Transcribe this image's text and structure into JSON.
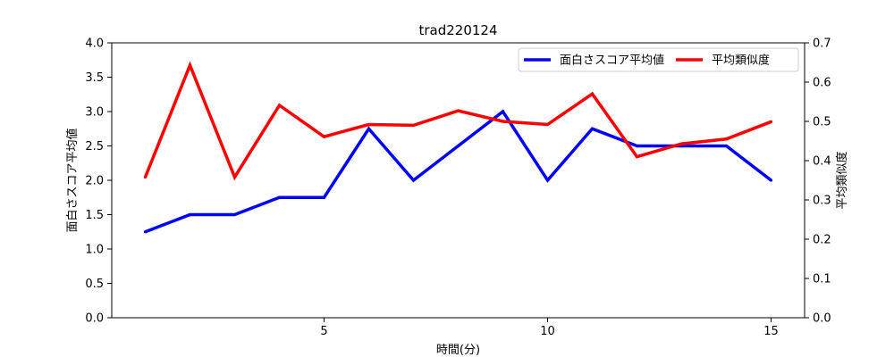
{
  "chart_data": {
    "type": "line",
    "title": "trad220124",
    "xlabel": "時間(分)",
    "ylabel_left": "面白さスコア平均値",
    "ylabel_right": "平均類似度",
    "xlim": [
      0.25,
      15.75
    ],
    "ylim_left": [
      0.0,
      4.0
    ],
    "ylim_right": [
      0.0,
      0.7
    ],
    "x_ticks": [
      5,
      10,
      15
    ],
    "y_ticks_left": [
      0.0,
      0.5,
      1.0,
      1.5,
      2.0,
      2.5,
      3.0,
      3.5,
      4.0
    ],
    "y_ticks_right": [
      0.0,
      0.1,
      0.2,
      0.3,
      0.4,
      0.5,
      0.6,
      0.7
    ],
    "grid": false,
    "legend_position": "upper right",
    "x": [
      1,
      2,
      3,
      4,
      5,
      6,
      7,
      8,
      9,
      10,
      11,
      12,
      13,
      14,
      15
    ],
    "series": [
      {
        "name": "面白さスコア平均値",
        "axis": "left",
        "color": "#0000ff",
        "values": [
          1.25,
          1.5,
          1.5,
          1.75,
          1.75,
          2.75,
          2.0,
          2.5,
          3.0,
          2.0,
          2.75,
          2.5,
          2.5,
          2.5,
          2.0
        ]
      },
      {
        "name": "平均類似度",
        "axis": "right",
        "color": "#ff0000",
        "values": [
          0.358,
          0.643,
          0.358,
          0.541,
          0.461,
          0.492,
          0.49,
          0.527,
          0.5,
          0.492,
          0.57,
          0.41,
          0.443,
          0.455,
          0.499
        ]
      }
    ]
  }
}
